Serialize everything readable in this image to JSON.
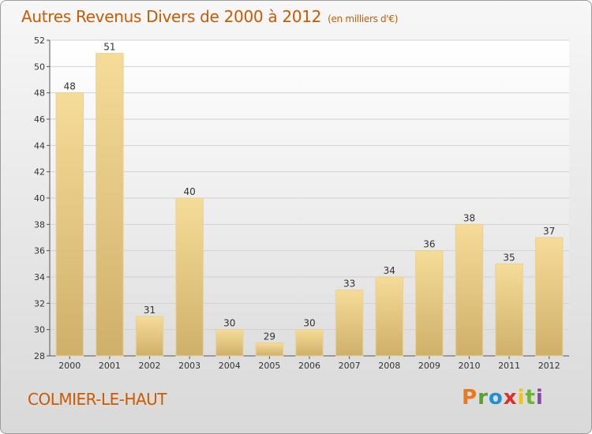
{
  "header": {
    "title": "Autres Revenus Divers de 2000 à 2012",
    "subtitle": "(en milliers d'€)"
  },
  "footer": {
    "city": "COLMIER-LE-HAUT",
    "brand": "Proxiti",
    "brand_colors": [
      "#e8791f",
      "#5aa02c",
      "#1f8fd6",
      "#d9302a",
      "#f1c40f",
      "#6bb536",
      "#8e44ad"
    ]
  },
  "chart_data": {
    "type": "bar",
    "title": "Autres Revenus Divers de 2000 à 2012",
    "subtitle": "(en milliers d'€)",
    "xlabel": "",
    "ylabel": "",
    "categories": [
      "2000",
      "2001",
      "2002",
      "2003",
      "2004",
      "2005",
      "2006",
      "2007",
      "2008",
      "2009",
      "2010",
      "2011",
      "2012"
    ],
    "values": [
      48,
      51,
      31,
      40,
      30,
      29,
      30,
      33,
      34,
      36,
      38,
      35,
      37
    ],
    "ylim": [
      28,
      52
    ],
    "yticks": [
      28,
      30,
      32,
      34,
      36,
      38,
      40,
      42,
      44,
      46,
      48,
      50,
      52
    ],
    "grid": true,
    "bar_color_top": "#f5dc98",
    "bar_color_bottom": "#cfb06a"
  }
}
